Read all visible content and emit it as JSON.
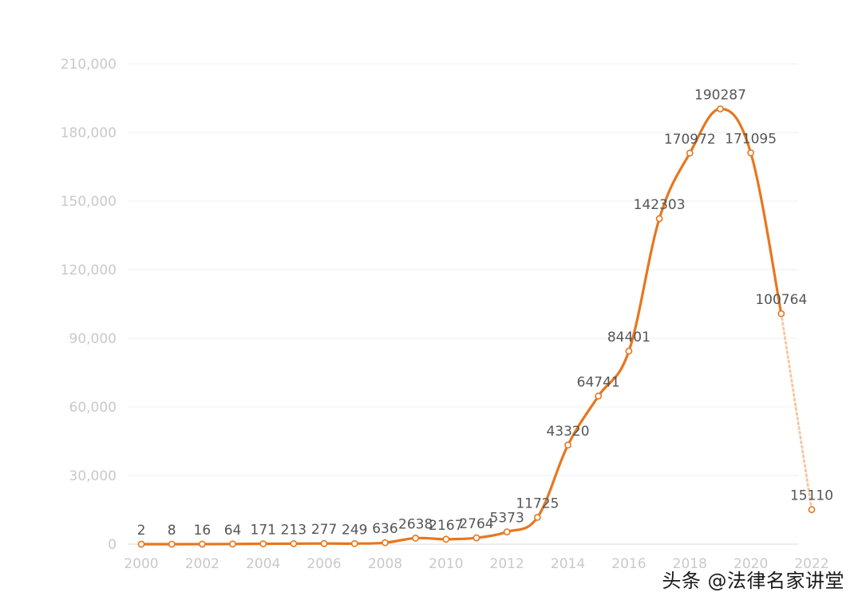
{
  "chart_data": {
    "type": "line",
    "title": "",
    "xlabel": "",
    "ylabel": "",
    "x": [
      2000,
      2001,
      2002,
      2003,
      2004,
      2005,
      2006,
      2007,
      2008,
      2009,
      2010,
      2011,
      2012,
      2013,
      2014,
      2015,
      2016,
      2017,
      2018,
      2019,
      2020,
      2021,
      2022
    ],
    "values": [
      2,
      8,
      16,
      64,
      171,
      213,
      277,
      249,
      636,
      2638,
      2167,
      2764,
      5373,
      11725,
      43320,
      64741,
      84401,
      142303,
      170972,
      190287,
      171095,
      100764,
      15110
    ],
    "data_labels": [
      "2",
      "8",
      "16",
      "64",
      "171",
      "213",
      "277",
      "249",
      "636",
      "2638",
      "2167",
      "2764",
      "5373",
      "11725",
      "43320",
      "64741",
      "84401",
      "142303",
      "170972",
      "190287",
      "171095",
      "100764",
      "15110"
    ],
    "projected_from_index": 21,
    "ylim": [
      0,
      210000
    ],
    "yticks": [
      0,
      30000,
      60000,
      90000,
      120000,
      150000,
      180000,
      210000
    ],
    "ytick_labels": [
      "0",
      "30,000",
      "60,000",
      "90,000",
      "120,000",
      "150,000",
      "180,000",
      "210,000"
    ],
    "xticks": [
      2000,
      2002,
      2004,
      2006,
      2008,
      2010,
      2012,
      2014,
      2016,
      2018,
      2020,
      2022
    ],
    "xtick_labels": [
      "2000",
      "2002",
      "2004",
      "2006",
      "2008",
      "2010",
      "2012",
      "2014",
      "2016",
      "2018",
      "2020",
      "2022"
    ],
    "grid": true,
    "line_color": "#e8761e",
    "projection_color": "#f5c9a3"
  },
  "watermark": "头条 @法律名家讲堂"
}
